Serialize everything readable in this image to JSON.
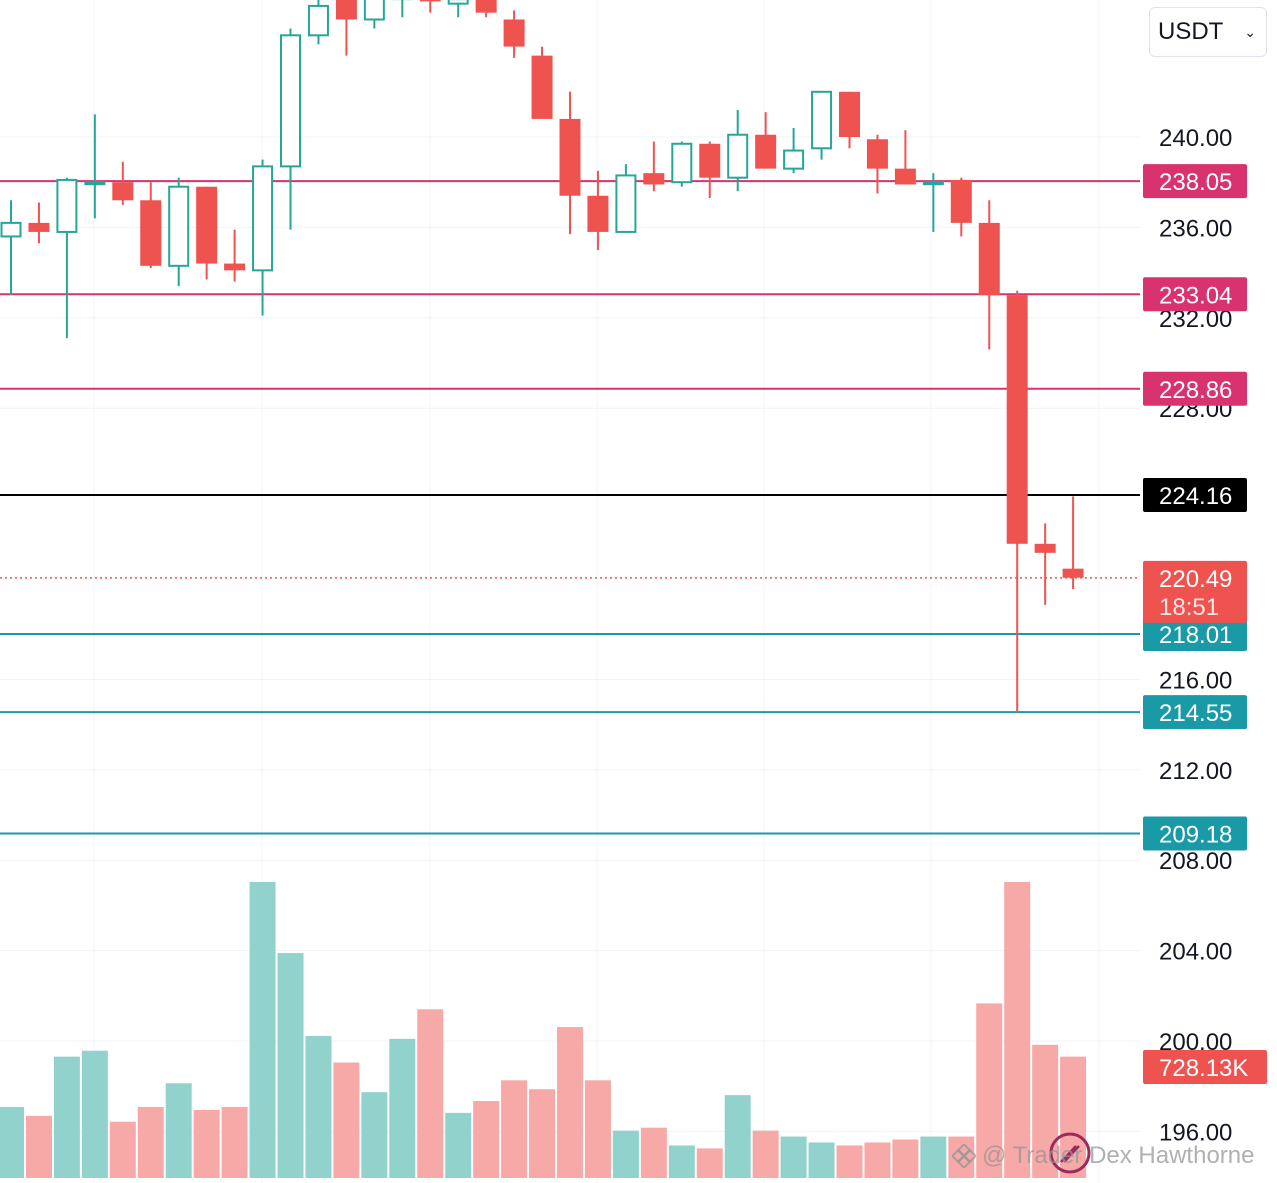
{
  "currency_select": {
    "value": "USDT"
  },
  "watermark": {
    "text": "@ Trader Dex Hawthorne"
  },
  "colors": {
    "up": "#26a69a",
    "down": "#ef5350",
    "up_volume": "#92d2cc",
    "down_volume": "#f7a9a7",
    "resistance_line": "#d8336e",
    "support_line": "#1a9aa6",
    "grid": "#f0f3fa"
  },
  "chart_data": {
    "type": "candlestick",
    "price_axis": {
      "ticks": [
        "240.00",
        "236.00",
        "232.00",
        "228.00",
        "216.00",
        "212.00",
        "208.00",
        "204.00",
        "200.00",
        "196.00"
      ],
      "tick_values": [
        240,
        236,
        232,
        228,
        216,
        212,
        208,
        204,
        200,
        196
      ],
      "range": [
        195.5,
        245.5
      ]
    },
    "levels": [
      {
        "value": 238.05,
        "label": "238.05",
        "kind": "resistance"
      },
      {
        "value": 233.04,
        "label": "233.04",
        "kind": "resistance"
      },
      {
        "value": 228.86,
        "label": "228.86",
        "kind": "resistance"
      },
      {
        "value": 224.16,
        "label": "224.16",
        "kind": "key"
      },
      {
        "value": 218.01,
        "label": "218.01",
        "kind": "support"
      },
      {
        "value": 214.55,
        "label": "214.55",
        "kind": "support"
      },
      {
        "value": 209.18,
        "label": "209.18",
        "kind": "support"
      }
    ],
    "last_price": {
      "value": 220.49,
      "label": "220.49",
      "countdown": "18:51"
    },
    "volume_label": "728.13K",
    "candles": [
      {
        "o": 235.6,
        "h": 237.2,
        "l": 233.0,
        "c": 236.2
      },
      {
        "o": 236.2,
        "h": 237.1,
        "l": 235.3,
        "c": 235.8
      },
      {
        "o": 235.8,
        "h": 238.2,
        "l": 231.1,
        "c": 238.1
      },
      {
        "o": 238.0,
        "h": 241.0,
        "l": 236.4,
        "c": 238.0
      },
      {
        "o": 238.0,
        "h": 238.9,
        "l": 237.0,
        "c": 237.2
      },
      {
        "o": 237.2,
        "h": 238.0,
        "l": 234.2,
        "c": 234.3
      },
      {
        "o": 234.3,
        "h": 238.2,
        "l": 233.4,
        "c": 237.8
      },
      {
        "o": 237.8,
        "h": 237.8,
        "l": 233.7,
        "c": 234.4
      },
      {
        "o": 234.4,
        "h": 235.9,
        "l": 233.6,
        "c": 234.1
      },
      {
        "o": 234.1,
        "h": 239.0,
        "l": 232.1,
        "c": 238.7
      },
      {
        "o": 238.7,
        "h": 244.8,
        "l": 235.9,
        "c": 244.5
      },
      {
        "o": 244.5,
        "h": 246.2,
        "l": 244.1,
        "c": 245.8
      },
      {
        "o": 246.5,
        "h": 246.8,
        "l": 243.6,
        "c": 245.2
      },
      {
        "o": 245.2,
        "h": 246.6,
        "l": 244.8,
        "c": 246.3
      },
      {
        "o": 246.1,
        "h": 246.8,
        "l": 245.3,
        "c": 246.2
      },
      {
        "o": 246.2,
        "h": 246.6,
        "l": 245.5,
        "c": 246.0
      },
      {
        "o": 245.9,
        "h": 246.3,
        "l": 245.3,
        "c": 246.1
      },
      {
        "o": 246.5,
        "h": 246.6,
        "l": 245.3,
        "c": 245.5
      },
      {
        "o": 245.2,
        "h": 245.6,
        "l": 243.5,
        "c": 244.0
      },
      {
        "o": 243.6,
        "h": 244.0,
        "l": 240.8,
        "c": 240.8
      },
      {
        "o": 240.8,
        "h": 242.0,
        "l": 235.7,
        "c": 237.4
      },
      {
        "o": 237.4,
        "h": 238.5,
        "l": 235.0,
        "c": 235.8
      },
      {
        "o": 235.8,
        "h": 238.8,
        "l": 235.8,
        "c": 238.3
      },
      {
        "o": 238.4,
        "h": 239.8,
        "l": 237.6,
        "c": 237.9
      },
      {
        "o": 238.0,
        "h": 239.8,
        "l": 237.8,
        "c": 239.7
      },
      {
        "o": 239.7,
        "h": 239.8,
        "l": 237.3,
        "c": 238.2
      },
      {
        "o": 238.2,
        "h": 241.2,
        "l": 237.6,
        "c": 240.1
      },
      {
        "o": 240.1,
        "h": 241.1,
        "l": 238.6,
        "c": 238.6
      },
      {
        "o": 238.6,
        "h": 240.4,
        "l": 238.4,
        "c": 239.4
      },
      {
        "o": 239.5,
        "h": 242.0,
        "l": 239.0,
        "c": 242.0
      },
      {
        "o": 242.0,
        "h": 242.0,
        "l": 239.5,
        "c": 240.0
      },
      {
        "o": 239.9,
        "h": 240.1,
        "l": 237.5,
        "c": 238.6
      },
      {
        "o": 238.6,
        "h": 240.3,
        "l": 237.9,
        "c": 237.9
      },
      {
        "o": 238.0,
        "h": 238.4,
        "l": 235.8,
        "c": 238.0
      },
      {
        "o": 238.1,
        "h": 238.2,
        "l": 235.6,
        "c": 236.2
      },
      {
        "o": 236.2,
        "h": 237.2,
        "l": 230.6,
        "c": 233.0
      },
      {
        "o": 233.0,
        "h": 233.2,
        "l": 214.6,
        "c": 222.0
      },
      {
        "o": 222.0,
        "h": 222.9,
        "l": 219.3,
        "c": 221.6
      },
      {
        "o": 220.9,
        "h": 224.1,
        "l": 220.0,
        "c": 220.5
      }
    ],
    "volume": {
      "range_max": 100,
      "values": [
        24,
        21,
        41,
        43,
        19,
        24,
        32,
        23,
        24,
        100,
        76,
        48,
        39,
        29,
        47,
        57,
        22,
        26,
        33,
        30,
        51,
        33,
        16,
        17,
        11,
        10,
        28,
        16,
        14,
        12,
        11,
        12,
        13,
        14,
        14,
        59,
        100,
        45,
        41
      ]
    }
  }
}
